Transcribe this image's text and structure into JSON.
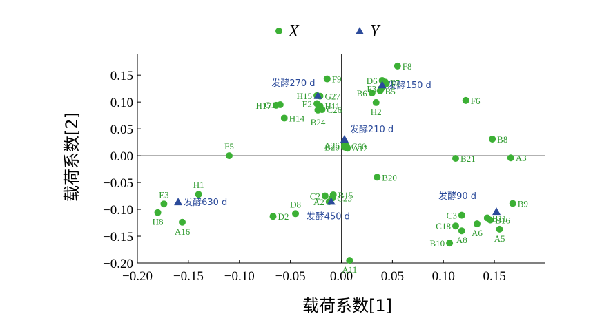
{
  "chart_data": {
    "type": "scatter",
    "xlabel": "载荷系数[1]",
    "ylabel": "载荷系数[2]",
    "xlim": [
      -0.2,
      0.2
    ],
    "ylim": [
      -0.2,
      0.19
    ],
    "x_ticks": [
      "−0.20",
      "−0.15",
      "−0.10",
      "−0.05",
      "0.00",
      "0.05",
      "0.10",
      "0.15"
    ],
    "y_ticks": [
      "−0.20",
      "−0.15",
      "−0.10",
      "−0.05",
      "0.00",
      "0.05",
      "0.10",
      "0.15"
    ],
    "x_tick_values": [
      -0.2,
      -0.15,
      -0.1,
      -0.05,
      0.0,
      0.05,
      0.1,
      0.15
    ],
    "y_tick_values": [
      -0.2,
      -0.15,
      -0.1,
      -0.05,
      0.0,
      0.05,
      0.1,
      0.15
    ],
    "legend_position": "top-center",
    "series": [
      {
        "name": "X",
        "marker": "circle",
        "color": "#3cb035",
        "points": [
          {
            "label": "F8",
            "x": 0.055,
            "y": 0.167
          },
          {
            "label": "F9",
            "x": -0.014,
            "y": 0.143
          },
          {
            "label": "D6",
            "x": 0.04,
            "y": 0.14
          },
          {
            "label": "F7",
            "x": 0.043,
            "y": 0.137
          },
          {
            "label": "F1",
            "x": 0.044,
            "y": 0.134
          },
          {
            "label": "F3",
            "x": 0.039,
            "y": 0.125
          },
          {
            "label": "B6",
            "x": 0.03,
            "y": 0.117
          },
          {
            "label": "B5",
            "x": 0.038,
            "y": 0.121
          },
          {
            "label": "H2",
            "x": 0.034,
            "y": 0.099
          },
          {
            "label": "H15",
            "x": -0.024,
            "y": 0.112
          },
          {
            "label": "G27",
            "x": -0.021,
            "y": 0.111
          },
          {
            "label": "G1",
            "x": -0.06,
            "y": 0.095
          },
          {
            "label": "H17",
            "x": -0.064,
            "y": 0.094
          },
          {
            "label": "E2",
            "x": -0.024,
            "y": 0.097
          },
          {
            "label": "H11",
            "x": -0.021,
            "y": 0.093
          },
          {
            "label": "C26",
            "x": -0.019,
            "y": 0.086
          },
          {
            "label": "H14",
            "x": -0.056,
            "y": 0.07
          },
          {
            "label": "F6",
            "x": 0.122,
            "y": 0.103
          },
          {
            "label": "B24",
            "x": -0.023,
            "y": 0.085
          },
          {
            "label": "A26",
            "x": 0.003,
            "y": 0.02
          },
          {
            "label": "B20",
            "x": 0.003,
            "y": 0.016
          },
          {
            "label": "C60",
            "x": 0.005,
            "y": 0.018
          },
          {
            "label": "A12",
            "x": 0.006,
            "y": 0.014
          },
          {
            "label": "B8",
            "x": 0.148,
            "y": 0.031
          },
          {
            "label": "F5",
            "x": -0.11,
            "y": 0.0
          },
          {
            "label": "B21",
            "x": 0.112,
            "y": -0.005
          },
          {
            "label": "A3",
            "x": 0.166,
            "y": -0.004
          },
          {
            "label": "B20",
            "x": 0.035,
            "y": -0.04
          },
          {
            "label": "H1",
            "x": -0.14,
            "y": -0.072
          },
          {
            "label": "E3",
            "x": -0.174,
            "y": -0.09
          },
          {
            "label": "H8",
            "x": -0.18,
            "y": -0.106
          },
          {
            "label": "A16",
            "x": -0.156,
            "y": -0.124
          },
          {
            "label": "C2",
            "x": -0.016,
            "y": -0.075
          },
          {
            "label": "B15",
            "x": -0.008,
            "y": -0.073
          },
          {
            "label": "C23",
            "x": -0.009,
            "y": -0.079
          },
          {
            "label": "A2",
            "x": -0.012,
            "y": -0.086
          },
          {
            "label": "D8",
            "x": -0.045,
            "y": -0.108
          },
          {
            "label": "D2",
            "x": -0.067,
            "y": -0.113
          },
          {
            "label": "A11",
            "x": 0.008,
            "y": -0.195
          },
          {
            "label": "B9",
            "x": 0.168,
            "y": -0.089
          },
          {
            "label": "C3",
            "x": 0.118,
            "y": -0.111
          },
          {
            "label": "B11",
            "x": 0.143,
            "y": -0.116
          },
          {
            "label": "B16",
            "x": 0.146,
            "y": -0.12
          },
          {
            "label": "C18",
            "x": 0.112,
            "y": -0.131
          },
          {
            "label": "A6",
            "x": 0.133,
            "y": -0.127
          },
          {
            "label": "A5",
            "x": 0.155,
            "y": -0.137
          },
          {
            "label": "A8",
            "x": 0.118,
            "y": -0.14
          },
          {
            "label": "B10",
            "x": 0.106,
            "y": -0.163
          }
        ]
      },
      {
        "name": "Y",
        "marker": "triangle",
        "color": "#2b4a9a",
        "points": [
          {
            "label": "发酵270 d",
            "x": -0.023,
            "y": 0.112
          },
          {
            "label": "发酵150 d",
            "x": 0.04,
            "y": 0.132
          },
          {
            "label": "发酵210 d",
            "x": 0.003,
            "y": 0.031
          },
          {
            "label": "发酵630 d",
            "x": -0.16,
            "y": -0.086
          },
          {
            "label": "发酵450 d",
            "x": -0.01,
            "y": -0.085
          },
          {
            "label": "发酵90 d",
            "x": 0.152,
            "y": -0.104
          }
        ]
      }
    ]
  }
}
